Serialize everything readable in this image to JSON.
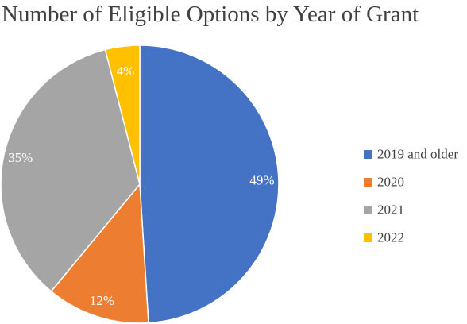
{
  "chart_data": {
    "type": "pie",
    "title": "Number of Eligible Options by Year of Grant",
    "categories": [
      "2019 and older",
      "2020",
      "2021",
      "2022"
    ],
    "values": [
      49,
      12,
      35,
      4
    ],
    "labels": [
      "49%",
      "12%",
      "35%",
      "4%"
    ],
    "colors": [
      "#4472c4",
      "#ed7d31",
      "#a5a5a5",
      "#ffc000"
    ],
    "label_colors": [
      "#ffffff",
      "#ffffff",
      "#ffffff",
      "#ffffff"
    ],
    "start_angle_deg": 0,
    "direction": "clockwise",
    "legend_position": "right"
  }
}
